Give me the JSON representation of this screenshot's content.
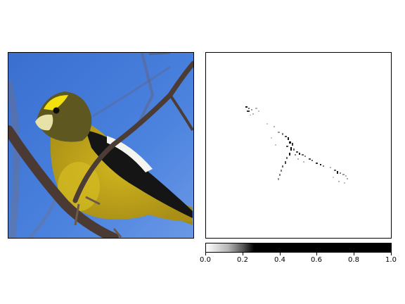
{
  "image": {
    "subject": "evening-grosbeak-on-branch",
    "colors": {
      "sky": "#3d74d4",
      "sky_light": "#6a98e6",
      "bird_yellow": "#c9ad1a",
      "bird_body": "#b79a1c",
      "head_dark": "#5a5418",
      "eyebrow": "#f2e10f",
      "beak": "#e8e2a8",
      "wing_black": "#141414",
      "wing_white": "#f4f4f0",
      "branch": "#4a3a33"
    }
  },
  "colorbar": {
    "ticks": [
      "0.0",
      "0.2",
      "0.4",
      "0.6",
      "0.8",
      "1.0"
    ],
    "tick_values": [
      0.0,
      0.2,
      0.4,
      0.6,
      0.8,
      1.0
    ],
    "range": [
      0.0,
      1.0
    ],
    "colormap": "gray_r"
  }
}
